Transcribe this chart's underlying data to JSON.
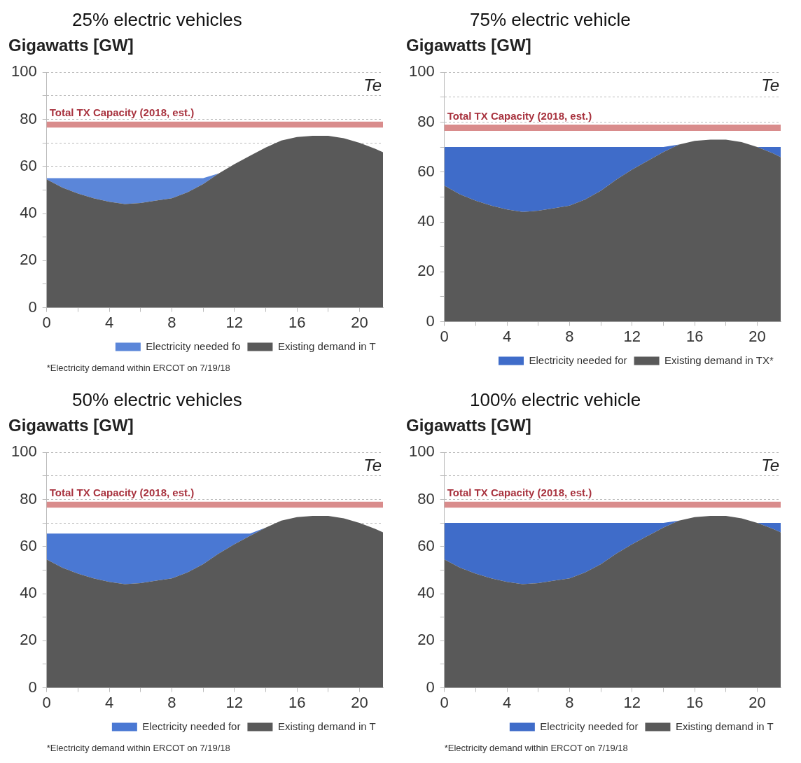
{
  "chart_data": [
    {
      "type": "area",
      "title": "25% electric vehicles",
      "ylabel": "Gigawatts [GW]",
      "stacked": true,
      "x": [
        0,
        1,
        2,
        3,
        4,
        5,
        6,
        7,
        8,
        9,
        10,
        11,
        12,
        13,
        14,
        15,
        16,
        17,
        18,
        19,
        20,
        21,
        21.5
      ],
      "xlim": [
        0,
        21.5
      ],
      "xticks": [
        0,
        {
          "value": 2,
          "label": null
        },
        4,
        {
          "value": 6,
          "label": null
        },
        8,
        {
          "value": 10,
          "label": null
        },
        12,
        {
          "value": 14,
          "label": null
        },
        16,
        {
          "value": 18,
          "label": null
        },
        20
      ],
      "ylim": [
        0,
        100
      ],
      "yticks": [
        0,
        {
          "value": 10,
          "label": null
        },
        20,
        {
          "value": 30,
          "label": null
        },
        40,
        {
          "value": 50,
          "label": null
        },
        60,
        {
          "value": 70,
          "label": null
        },
        80,
        {
          "value": 90,
          "label": null
        },
        100
      ],
      "grid": "y",
      "legend": "bottom right",
      "series": [
        {
          "name": "Existing demand in T",
          "color": "#595959",
          "values": [
            54.5,
            51,
            48.5,
            46.5,
            45,
            44,
            44.5,
            45.5,
            46.5,
            49,
            52.5,
            57,
            61,
            64.5,
            68,
            71,
            72.5,
            73,
            73,
            72,
            70,
            67.5,
            66
          ]
        },
        {
          "name": "Electricity needed fo",
          "color": "#5b86d9",
          "values": [
            0.5,
            4,
            6.5,
            8.5,
            10,
            11,
            10.5,
            9.5,
            8.5,
            6,
            2.5,
            0,
            0,
            0,
            0,
            0,
            0,
            0,
            0,
            0,
            0,
            0,
            0
          ]
        }
      ],
      "bands": [
        {
          "axis": "y",
          "from": 76.5,
          "to": 79,
          "label": "Total TX Capacity (2018, est.)",
          "color": "#d98c8c"
        }
      ],
      "annotations": [
        "Te",
        "*Electricity demand within ERCOT on 7/19/18"
      ]
    },
    {
      "type": "area",
      "title": "75% electric vehicle",
      "ylabel": "Gigawatts [GW]",
      "stacked": true,
      "x": [
        0,
        1,
        2,
        3,
        4,
        5,
        6,
        7,
        8,
        9,
        10,
        11,
        12,
        13,
        14,
        15,
        16,
        17,
        18,
        19,
        20,
        21,
        21.5
      ],
      "xlim": [
        0,
        21.5
      ],
      "xticks": [
        0,
        {
          "value": 2,
          "label": null
        },
        4,
        {
          "value": 6,
          "label": null
        },
        8,
        {
          "value": 10,
          "label": null
        },
        12,
        {
          "value": 14,
          "label": null
        },
        16,
        {
          "value": 18,
          "label": null
        },
        20
      ],
      "ylim": [
        0,
        100
      ],
      "yticks": [
        0,
        {
          "value": 10,
          "label": null
        },
        20,
        {
          "value": 30,
          "label": null
        },
        40,
        {
          "value": 50,
          "label": null
        },
        60,
        {
          "value": 70,
          "label": null
        },
        80,
        {
          "value": 90,
          "label": null
        },
        100
      ],
      "grid": "y",
      "legend": "bottom right",
      "series": [
        {
          "name": "Existing demand in TX*",
          "color": "#595959",
          "values": [
            54.5,
            51,
            48.5,
            46.5,
            45,
            44,
            44.5,
            45.5,
            46.5,
            49,
            52.5,
            57,
            61,
            64.5,
            68,
            71,
            72.5,
            73,
            73,
            72,
            70,
            67.5,
            66
          ]
        },
        {
          "name": "Electricity needed for",
          "color": "#3f6cc9",
          "values": [
            15.5,
            19,
            21.5,
            23.5,
            25,
            26,
            25.5,
            24.5,
            23.5,
            21,
            17.5,
            13,
            9,
            5.5,
            2,
            0,
            0,
            0,
            0,
            0,
            0,
            2.5,
            4
          ]
        }
      ],
      "bands": [
        {
          "axis": "y",
          "from": 76.5,
          "to": 79,
          "label": "Total TX Capacity (2018, est.)",
          "color": "#d98c8c"
        }
      ],
      "annotations": [
        "Te"
      ]
    },
    {
      "type": "area",
      "title": "50% electric vehicles",
      "ylabel": "Gigawatts [GW]",
      "stacked": true,
      "x": [
        0,
        1,
        2,
        3,
        4,
        5,
        6,
        7,
        8,
        9,
        10,
        11,
        12,
        13,
        14,
        15,
        16,
        17,
        18,
        19,
        20,
        21,
        21.5
      ],
      "xlim": [
        0,
        21.5
      ],
      "xticks": [
        0,
        {
          "value": 2,
          "label": null
        },
        4,
        {
          "value": 6,
          "label": null
        },
        8,
        {
          "value": 10,
          "label": null
        },
        12,
        {
          "value": 14,
          "label": null
        },
        16,
        {
          "value": 18,
          "label": null
        },
        20
      ],
      "ylim": [
        0,
        100
      ],
      "yticks": [
        0,
        {
          "value": 10,
          "label": null
        },
        20,
        {
          "value": 30,
          "label": null
        },
        40,
        {
          "value": 50,
          "label": null
        },
        60,
        {
          "value": 70,
          "label": null
        },
        80,
        {
          "value": 90,
          "label": null
        },
        100
      ],
      "grid": "y",
      "legend": "bottom right",
      "series": [
        {
          "name": "Existing demand in T",
          "color": "#595959",
          "values": [
            54.5,
            51,
            48.5,
            46.5,
            45,
            44,
            44.5,
            45.5,
            46.5,
            49,
            52.5,
            57,
            61,
            64.5,
            68,
            71,
            72.5,
            73,
            73,
            72,
            70,
            67.5,
            66
          ]
        },
        {
          "name": "Electricity needed for",
          "color": "#4a78d3",
          "values": [
            11,
            14.5,
            17,
            19,
            20.5,
            21.5,
            21,
            20,
            19,
            16.5,
            13,
            8.5,
            4.5,
            1,
            0,
            0,
            0,
            0,
            0,
            0,
            0,
            0,
            0
          ]
        }
      ],
      "bands": [
        {
          "axis": "y",
          "from": 76.5,
          "to": 79,
          "label": "Total TX Capacity (2018, est.)",
          "color": "#d98c8c"
        }
      ],
      "annotations": [
        "Te",
        "*Electricity demand within ERCOT on 7/19/18"
      ]
    },
    {
      "type": "area",
      "title": "100% electric vehicle",
      "ylabel": "Gigawatts [GW]",
      "stacked": true,
      "x": [
        0,
        1,
        2,
        3,
        4,
        5,
        6,
        7,
        8,
        9,
        10,
        11,
        12,
        13,
        14,
        15,
        16,
        17,
        18,
        19,
        20,
        21,
        21.5
      ],
      "xlim": [
        0,
        21.5
      ],
      "xticks": [
        0,
        {
          "value": 2,
          "label": null
        },
        4,
        {
          "value": 6,
          "label": null
        },
        8,
        {
          "value": 10,
          "label": null
        },
        12,
        {
          "value": 14,
          "label": null
        },
        16,
        {
          "value": 18,
          "label": null
        },
        20
      ],
      "ylim": [
        0,
        100
      ],
      "yticks": [
        0,
        {
          "value": 10,
          "label": null
        },
        20,
        {
          "value": 30,
          "label": null
        },
        40,
        {
          "value": 50,
          "label": null
        },
        60,
        {
          "value": 70,
          "label": null
        },
        80,
        {
          "value": 90,
          "label": null
        },
        100
      ],
      "grid": "y",
      "legend": "bottom right",
      "series": [
        {
          "name": "Existing demand in T",
          "color": "#595959",
          "values": [
            54.5,
            51,
            48.5,
            46.5,
            45,
            44,
            44.5,
            45.5,
            46.5,
            49,
            52.5,
            57,
            61,
            64.5,
            68,
            71,
            72.5,
            73,
            73,
            72,
            70,
            67.5,
            66
          ]
        },
        {
          "name": "Electricity needed for",
          "color": "#3f6cc9",
          "values": [
            15.5,
            19,
            21.5,
            23.5,
            25,
            26,
            25.5,
            24.5,
            23.5,
            21,
            17.5,
            13,
            9,
            5.5,
            2,
            0,
            0,
            0,
            0,
            0,
            0,
            2.5,
            4
          ]
        }
      ],
      "bands": [
        {
          "axis": "y",
          "from": 76.5,
          "to": 79,
          "label": "Total TX Capacity (2018, est.)",
          "color": "#d98c8c"
        }
      ],
      "annotations": [
        "Te",
        "*Electricity demand within ERCOT on 7/19/18"
      ]
    }
  ]
}
